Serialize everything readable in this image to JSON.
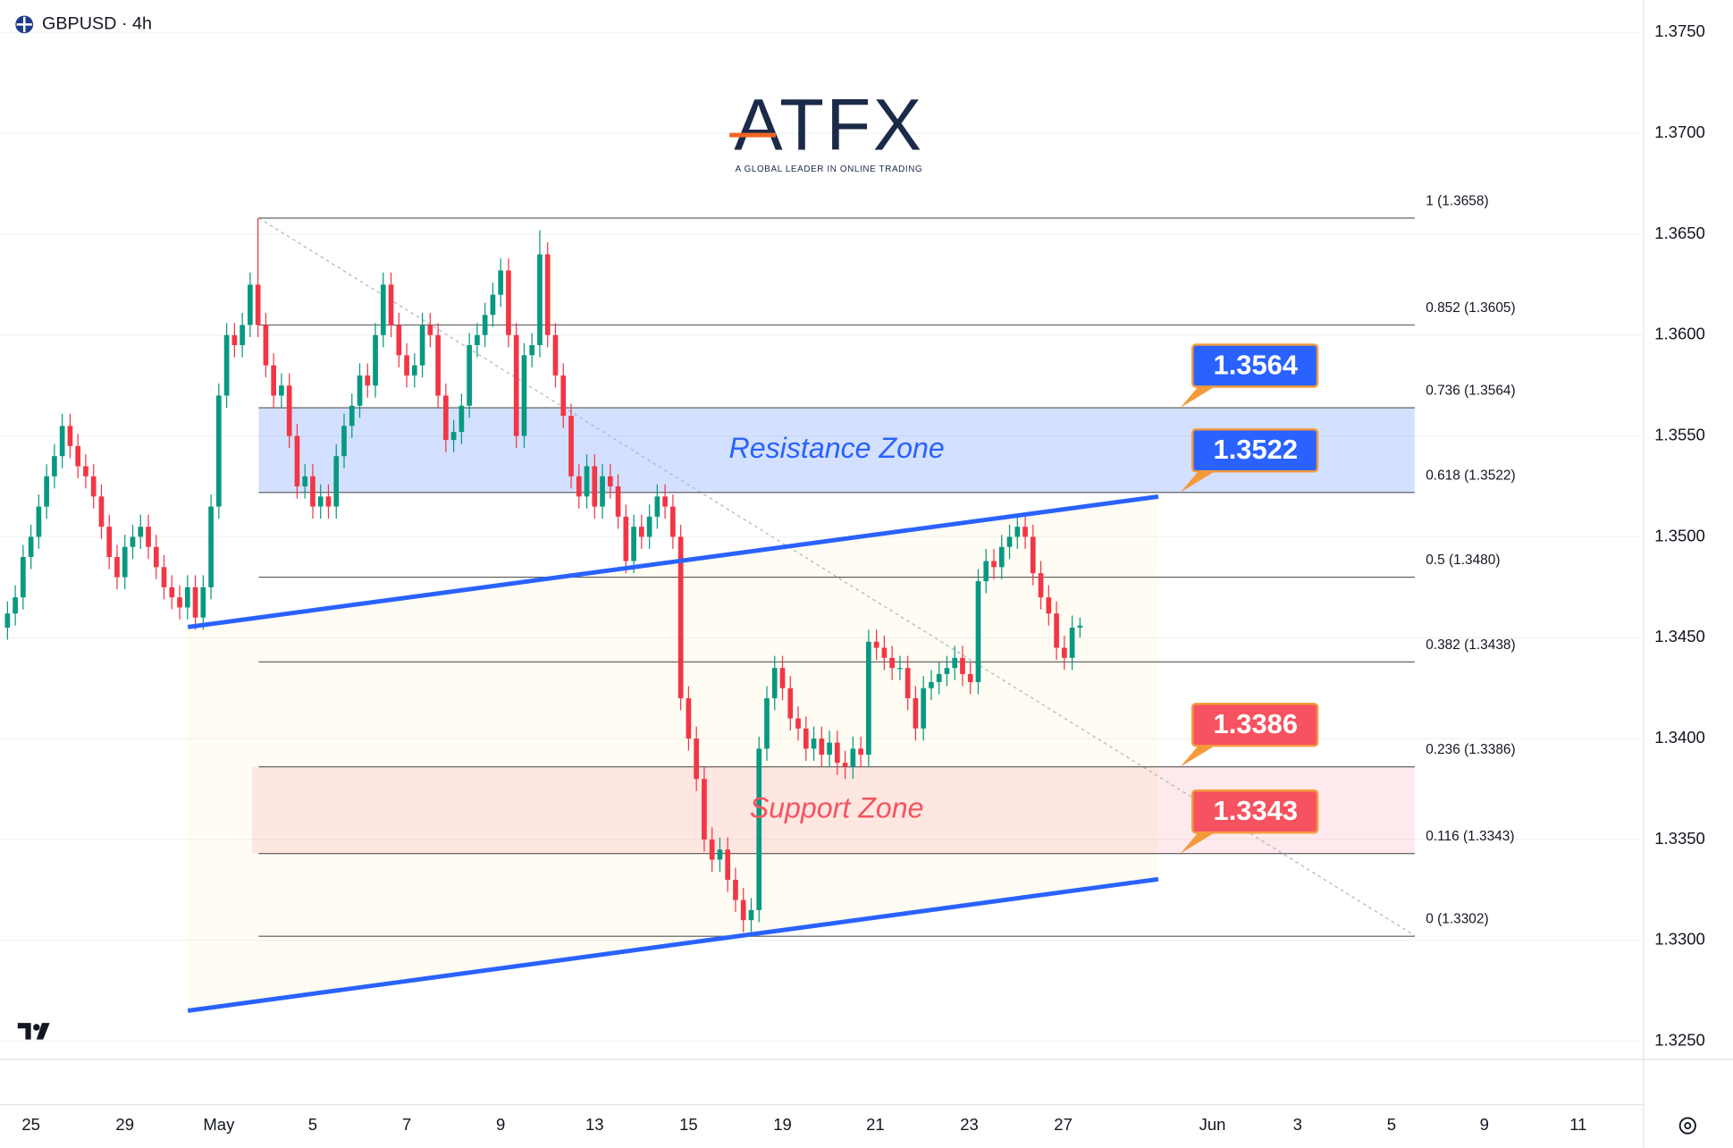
{
  "chart_data": {
    "type": "candlestick",
    "title": "GBPUSD · 4h",
    "logo": {
      "name": "ATFX",
      "tagline": "A GLOBAL LEADER IN ONLINE TRADING"
    },
    "colors": {
      "up": "#089981",
      "down": "#f23645"
    },
    "open": [
      1.3455,
      1.3462,
      1.347,
      1.349,
      1.35,
      1.3515,
      1.353,
      1.354,
      1.3555,
      1.3545,
      1.3535,
      1.353,
      1.352,
      1.3505,
      1.349,
      1.348,
      1.3495,
      1.35,
      1.3505,
      1.3495,
      1.3485,
      1.3475,
      1.347,
      1.3465,
      1.3475,
      1.346,
      1.3475,
      1.3515,
      1.357,
      1.36,
      1.3595,
      1.3605,
      1.3625,
      1.3605,
      1.3585,
      1.357,
      1.3575,
      1.355,
      1.3525,
      1.353,
      1.3515,
      1.352,
      1.3515,
      1.354,
      1.3555,
      1.3565,
      1.358,
      1.3575,
      1.36,
      1.3625,
      1.3605,
      1.359,
      1.358,
      1.3585,
      1.3605,
      1.36,
      1.357,
      1.3548,
      1.3552,
      1.3565,
      1.3595,
      1.36,
      1.361,
      1.362,
      1.3632,
      1.36,
      1.355,
      1.359,
      1.3595,
      1.364,
      1.36,
      1.358,
      1.356,
      1.353,
      1.352,
      1.3535,
      1.3515,
      1.353,
      1.3525,
      1.351,
      1.3488,
      1.3505,
      1.35,
      1.351,
      1.352,
      1.3515,
      1.35,
      1.342,
      1.34,
      1.338,
      1.335,
      1.334,
      1.3345,
      1.333,
      1.332,
      1.331,
      1.3315,
      1.3395,
      1.342,
      1.3435,
      1.3425,
      1.341,
      1.3405,
      1.3395,
      1.34,
      1.3392,
      1.3398,
      1.3388,
      1.3386,
      1.3395,
      1.3392,
      1.3448,
      1.3445,
      1.344,
      1.3435,
      1.3435,
      1.342,
      1.3405,
      1.3425,
      1.3428,
      1.3432,
      1.3435,
      1.344,
      1.3432,
      1.3428,
      1.3478,
      1.3488,
      1.3485,
      1.3495,
      1.35,
      1.3505,
      1.35,
      1.3482,
      1.347,
      1.3462,
      1.3445,
      1.344,
      1.3455
    ],
    "high": [
      1.3468,
      1.3476,
      1.3496,
      1.3506,
      1.3521,
      1.3536,
      1.3546,
      1.3561,
      1.3561,
      1.3551,
      1.3541,
      1.3536,
      1.3526,
      1.3511,
      1.3496,
      1.3501,
      1.3506,
      1.3511,
      1.3511,
      1.3501,
      1.3491,
      1.3481,
      1.3476,
      1.3481,
      1.3481,
      1.3481,
      1.3521,
      1.3576,
      1.3606,
      1.3606,
      1.3611,
      1.3631,
      1.3658,
      1.3611,
      1.3591,
      1.3581,
      1.3581,
      1.3556,
      1.3536,
      1.3536,
      1.3526,
      1.3526,
      1.3546,
      1.3561,
      1.3571,
      1.3586,
      1.3586,
      1.3606,
      1.3631,
      1.3631,
      1.3611,
      1.3596,
      1.3591,
      1.3611,
      1.3611,
      1.3606,
      1.3576,
      1.3558,
      1.3571,
      1.3601,
      1.3606,
      1.3616,
      1.3626,
      1.3638,
      1.3638,
      1.3606,
      1.3596,
      1.3601,
      1.3652,
      1.3646,
      1.3606,
      1.3586,
      1.3566,
      1.3536,
      1.3541,
      1.3541,
      1.3536,
      1.3536,
      1.3531,
      1.3516,
      1.3511,
      1.3511,
      1.3516,
      1.3526,
      1.3526,
      1.3521,
      1.3506,
      1.3426,
      1.3406,
      1.3386,
      1.3356,
      1.3351,
      1.3351,
      1.3336,
      1.3326,
      1.3321,
      1.3401,
      1.3426,
      1.3441,
      1.3441,
      1.3431,
      1.3416,
      1.3411,
      1.3406,
      1.3406,
      1.3404,
      1.3404,
      1.3394,
      1.3401,
      1.3401,
      1.3454,
      1.3454,
      1.3451,
      1.3446,
      1.3441,
      1.3441,
      1.3426,
      1.3431,
      1.3434,
      1.3438,
      1.3441,
      1.3446,
      1.3446,
      1.3438,
      1.3484,
      1.3494,
      1.3494,
      1.3501,
      1.3506,
      1.351,
      1.3511,
      1.3506,
      1.3488,
      1.3476,
      1.3468,
      1.3451,
      1.3461,
      1.346
    ],
    "low": [
      1.3449,
      1.3456,
      1.3464,
      1.3484,
      1.3494,
      1.3509,
      1.3524,
      1.3534,
      1.3539,
      1.3529,
      1.3524,
      1.3514,
      1.3499,
      1.3484,
      1.3474,
      1.3474,
      1.3489,
      1.3494,
      1.3489,
      1.3479,
      1.3469,
      1.3464,
      1.3459,
      1.3459,
      1.3454,
      1.3454,
      1.3469,
      1.3509,
      1.3564,
      1.3589,
      1.3589,
      1.3599,
      1.3599,
      1.3579,
      1.3564,
      1.3564,
      1.3544,
      1.3519,
      1.3519,
      1.3509,
      1.3509,
      1.3509,
      1.3509,
      1.3534,
      1.3549,
      1.3559,
      1.3569,
      1.3569,
      1.3594,
      1.3599,
      1.3584,
      1.3574,
      1.3574,
      1.3579,
      1.3594,
      1.3564,
      1.3542,
      1.3542,
      1.3546,
      1.3559,
      1.3589,
      1.3594,
      1.3604,
      1.3614,
      1.3594,
      1.3544,
      1.3544,
      1.3584,
      1.3589,
      1.3594,
      1.3574,
      1.3554,
      1.3524,
      1.3514,
      1.3514,
      1.3509,
      1.3509,
      1.3519,
      1.3504,
      1.3482,
      1.3482,
      1.3494,
      1.3494,
      1.3504,
      1.3509,
      1.3494,
      1.3414,
      1.3394,
      1.3374,
      1.3344,
      1.3334,
      1.3334,
      1.3324,
      1.3314,
      1.3304,
      1.3302,
      1.3309,
      1.3389,
      1.3414,
      1.3419,
      1.3404,
      1.3399,
      1.3389,
      1.3389,
      1.3386,
      1.3386,
      1.3382,
      1.338,
      1.338,
      1.3386,
      1.3386,
      1.3439,
      1.3434,
      1.3429,
      1.3429,
      1.3414,
      1.3399,
      1.3399,
      1.3419,
      1.3422,
      1.3426,
      1.3429,
      1.3426,
      1.3422,
      1.3422,
      1.3472,
      1.3479,
      1.3479,
      1.3489,
      1.3494,
      1.3494,
      1.3476,
      1.3464,
      1.3456,
      1.3439,
      1.3434,
      1.3434,
      1.345
    ],
    "close": [
      1.3462,
      1.347,
      1.349,
      1.35,
      1.3515,
      1.353,
      1.354,
      1.3555,
      1.3545,
      1.3535,
      1.353,
      1.352,
      1.3505,
      1.349,
      1.348,
      1.3495,
      1.35,
      1.3505,
      1.3495,
      1.3485,
      1.3475,
      1.347,
      1.3465,
      1.3475,
      1.346,
      1.3475,
      1.3515,
      1.357,
      1.36,
      1.3595,
      1.3605,
      1.3625,
      1.3605,
      1.3585,
      1.357,
      1.3575,
      1.355,
      1.3525,
      1.353,
      1.3515,
      1.352,
      1.3515,
      1.354,
      1.3555,
      1.3565,
      1.358,
      1.3575,
      1.36,
      1.3625,
      1.3605,
      1.359,
      1.358,
      1.3585,
      1.3605,
      1.36,
      1.357,
      1.3548,
      1.3552,
      1.3565,
      1.3595,
      1.36,
      1.361,
      1.362,
      1.3632,
      1.36,
      1.355,
      1.359,
      1.3595,
      1.364,
      1.36,
      1.358,
      1.356,
      1.353,
      1.352,
      1.3535,
      1.3515,
      1.353,
      1.3525,
      1.351,
      1.3488,
      1.3505,
      1.35,
      1.351,
      1.352,
      1.3515,
      1.35,
      1.342,
      1.34,
      1.338,
      1.335,
      1.334,
      1.3345,
      1.333,
      1.332,
      1.331,
      1.3315,
      1.3395,
      1.342,
      1.3435,
      1.3425,
      1.341,
      1.3405,
      1.3395,
      1.34,
      1.3392,
      1.3398,
      1.3388,
      1.3386,
      1.3395,
      1.3392,
      1.3448,
      1.3445,
      1.344,
      1.3435,
      1.3435,
      1.342,
      1.3405,
      1.3425,
      1.3428,
      1.3432,
      1.3435,
      1.344,
      1.3432,
      1.3428,
      1.3478,
      1.3488,
      1.3485,
      1.3495,
      1.35,
      1.3505,
      1.35,
      1.3482,
      1.347,
      1.3462,
      1.3445,
      1.344,
      1.3455,
      1.3456
    ],
    "ylim": [
      1.3241,
      1.3766
    ],
    "yticks": [
      {
        "value": 1.375,
        "label": "1.3750"
      },
      {
        "value": 1.37,
        "label": "1.3700"
      },
      {
        "value": 1.365,
        "label": "1.3650"
      },
      {
        "value": 1.36,
        "label": "1.3600"
      },
      {
        "value": 1.355,
        "label": "1.3550"
      },
      {
        "value": 1.35,
        "label": "1.3500"
      },
      {
        "value": 1.345,
        "label": "1.3450"
      },
      {
        "value": 1.34,
        "label": "1.3400"
      },
      {
        "value": 1.335,
        "label": "1.3350"
      },
      {
        "value": 1.33,
        "label": "1.3300"
      },
      {
        "value": 1.325,
        "label": "1.3250"
      }
    ],
    "grid": true,
    "xticks": [
      "25",
      "29",
      "May",
      "5",
      "7",
      "9",
      "13",
      "15",
      "19",
      "21",
      "23",
      "27",
      "Jun",
      "3",
      "5",
      "9",
      "11"
    ],
    "fibonacci": [
      {
        "value": 1.3658,
        "label": "1 (1.3658)"
      },
      {
        "value": 1.3605,
        "label": "0.852 (1.3605)"
      },
      {
        "value": 1.3564,
        "label": "0.736 (1.3564)"
      },
      {
        "value": 1.3522,
        "label": "0.618 (1.3522)"
      },
      {
        "value": 1.348,
        "label": "0.5 (1.3480)"
      },
      {
        "value": 1.3438,
        "label": "0.382 (1.3438)"
      },
      {
        "value": 1.3386,
        "label": "0.236 (1.3386)"
      },
      {
        "value": 1.3343,
        "label": "0.116 (1.3343)"
      },
      {
        "value": 1.3302,
        "label": "0 (1.3302)"
      }
    ],
    "zones": [
      {
        "label": "Resistance Zone",
        "range": [
          1.3522,
          1.3564
        ],
        "color": "#2962ff"
      },
      {
        "label": "Support Zone",
        "range": [
          1.3343,
          1.3386
        ],
        "color": "#f7525f"
      }
    ],
    "price_labels": [
      {
        "value": 1.3564,
        "color": "#2962ff"
      },
      {
        "value": 1.3522,
        "color": "#2962ff"
      },
      {
        "value": 1.3386,
        "color": "#f7525f"
      },
      {
        "value": 1.3343,
        "color": "#f7525f"
      }
    ]
  }
}
